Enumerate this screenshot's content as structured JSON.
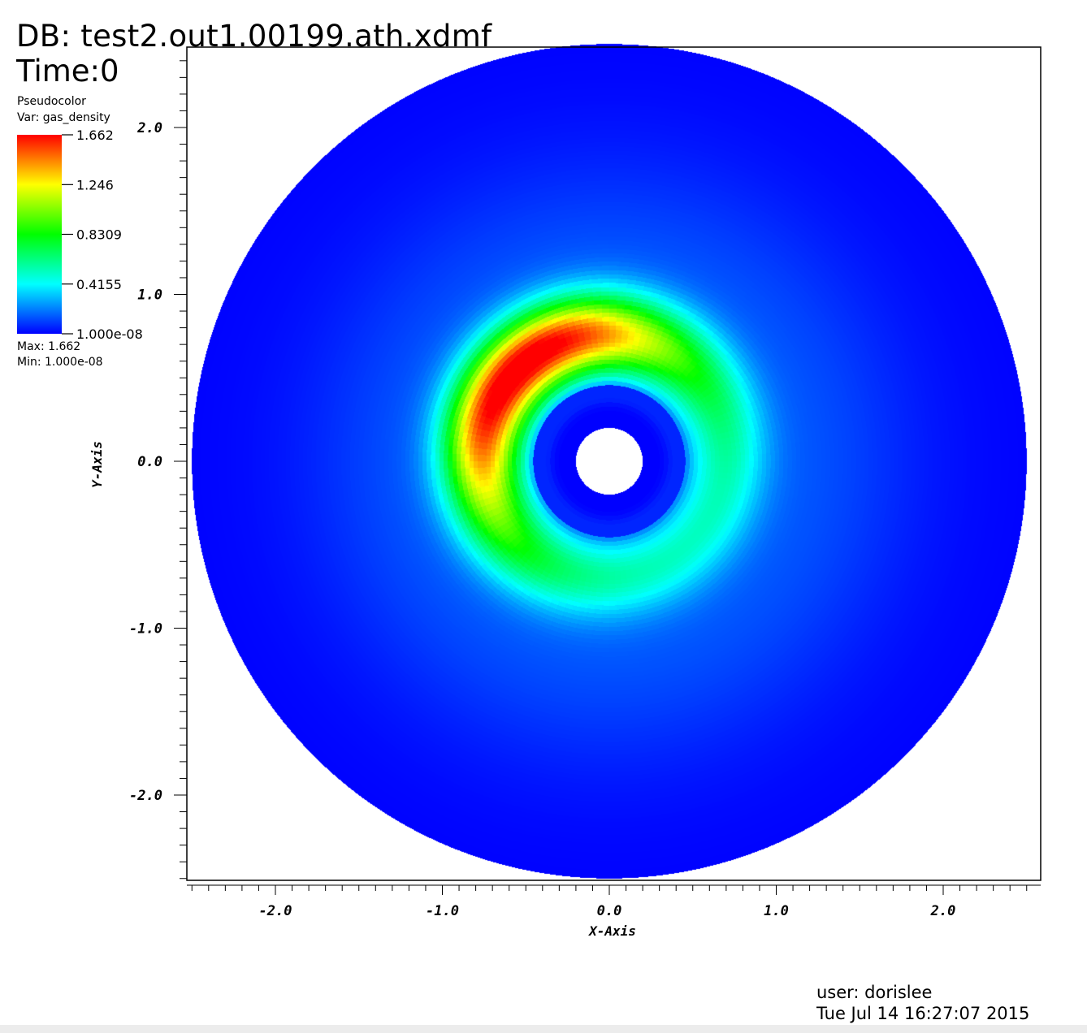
{
  "header": {
    "db_label": "DB: test2.out1.00199.ath.xdmf",
    "time_label": "Time:0"
  },
  "legend": {
    "plot_type": "Pseudocolor",
    "var_label": "Var: gas_density",
    "ticks": [
      "1.662",
      "1.246",
      "0.8309",
      "0.4155",
      "1.000e-08"
    ],
    "max_label": "Max:  1.662",
    "min_label": "Min:  1.000e-08"
  },
  "footer": {
    "user": "user: dorislee",
    "timestamp": "Tue Jul 14 16:27:07 2015"
  },
  "chart_data": {
    "type": "heatmap",
    "subtype": "pseudocolor",
    "variable": "gas_density",
    "colormap": "hot (blue-cyan-green-yellow-red)",
    "value_min": 1e-08,
    "value_max": 1.662,
    "colorbar_ticks": [
      1.662,
      1.246,
      0.8309,
      0.4155,
      1e-08
    ],
    "colorbar_colors": [
      "#ff0000",
      "#ffff00",
      "#00ff00",
      "#00ffff",
      "#0000ff"
    ],
    "xlabel": "X-Axis",
    "ylabel": "Y-Axis",
    "xlim": [
      -2.5,
      2.6
    ],
    "ylim": [
      -2.5,
      2.5
    ],
    "xticks": [
      -2.0,
      -1.0,
      0.0,
      1.0,
      2.0
    ],
    "yticks": [
      -2.0,
      -1.0,
      0.0,
      1.0,
      2.0
    ],
    "xtick_labels": [
      "-2.0",
      "-1.0",
      "0.0",
      "1.0",
      "2.0"
    ],
    "ytick_labels": [
      "-2.0",
      "-1.0",
      "0.0",
      "1.0",
      "2.0"
    ],
    "domain": {
      "shape": "annulus",
      "inner_radius": 0.2,
      "outer_radius": 2.5
    },
    "features": {
      "ring_peak_radius": 0.72,
      "peak_density": 1.662,
      "peak_angle_deg": 135,
      "background_density": 0.0,
      "ring_base_density": 0.45
    }
  }
}
